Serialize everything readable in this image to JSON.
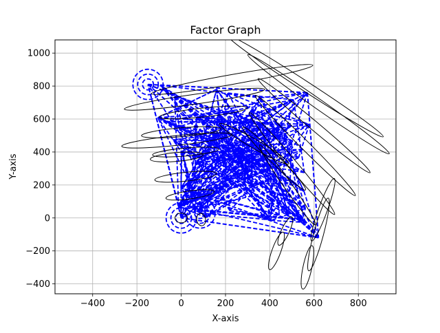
{
  "chart_data": {
    "type": "line",
    "title": "Factor Graph",
    "xlabel": "X-axis",
    "ylabel": "Y-axis",
    "xlim": [
      -570,
      970
    ],
    "ylim": [
      -460,
      1080
    ],
    "xticks": [
      -400,
      -200,
      0,
      200,
      400,
      600,
      800
    ],
    "yticks": [
      -400,
      -200,
      0,
      200,
      400,
      600,
      800,
      1000
    ],
    "xtick_labels": [
      "−400",
      "−200",
      "0",
      "200",
      "400",
      "600",
      "800"
    ],
    "ytick_labels": [
      "−400",
      "−200",
      "0",
      "200",
      "400",
      "600",
      "800",
      "1000"
    ],
    "grid": true,
    "edge_color": "#0000ff",
    "ellipse_color": "#000000",
    "nodes": [
      {
        "x": 0,
        "y": 0
      },
      {
        "x": 85,
        "y": 30
      },
      {
        "x": 160,
        "y": 780
      },
      {
        "x": 570,
        "y": 760
      },
      {
        "x": 620,
        "y": -120
      },
      {
        "x": -150,
        "y": 810
      },
      {
        "x": 390,
        "y": 300
      },
      {
        "x": 200,
        "y": 650
      },
      {
        "x": 500,
        "y": 450
      },
      {
        "x": 120,
        "y": 400
      }
    ],
    "ellipses": [
      {
        "cx": 0,
        "cy": 0,
        "rx": 28,
        "ry": 22,
        "angle": 0
      },
      {
        "cx": 90,
        "cy": -10,
        "rx": 20,
        "ry": 28,
        "angle": 10
      },
      {
        "cx": 430,
        "cy": -200,
        "rx": 90,
        "ry": 20,
        "angle": 70
      },
      {
        "cx": 470,
        "cy": -80,
        "rx": 70,
        "ry": 18,
        "angle": 65
      },
      {
        "cx": 570,
        "cy": -300,
        "rx": 100,
        "ry": 20,
        "angle": 78
      },
      {
        "cx": 620,
        "cy": -100,
        "rx": 170,
        "ry": 22,
        "angle": 75
      },
      {
        "cx": 640,
        "cy": 50,
        "rx": 150,
        "ry": 20,
        "angle": 70
      },
      {
        "cx": 230,
        "cy": 840,
        "rx": 370,
        "ry": 22,
        "angle": 10
      },
      {
        "cx": 60,
        "cy": 720,
        "rx": 320,
        "ry": 22,
        "angle": 8
      },
      {
        "cx": 100,
        "cy": 640,
        "rx": 200,
        "ry": 20,
        "angle": 6
      },
      {
        "cx": 0,
        "cy": 520,
        "rx": 180,
        "ry": 20,
        "angle": 5
      },
      {
        "cx": -20,
        "cy": 470,
        "rx": 250,
        "ry": 22,
        "angle": 6
      },
      {
        "cx": 20,
        "cy": 400,
        "rx": 150,
        "ry": 18,
        "angle": 5
      },
      {
        "cx": -20,
        "cy": 370,
        "rx": 120,
        "ry": 20,
        "angle": 5
      },
      {
        "cx": 20,
        "cy": 250,
        "rx": 140,
        "ry": 20,
        "angle": 6
      },
      {
        "cx": 40,
        "cy": 140,
        "rx": 110,
        "ry": 18,
        "angle": 8
      },
      {
        "cx": 560,
        "cy": 800,
        "rx": 420,
        "ry": 22,
        "angle": -33
      },
      {
        "cx": 620,
        "cy": 690,
        "rx": 390,
        "ry": 22,
        "angle": -35
      },
      {
        "cx": 600,
        "cy": 560,
        "rx": 330,
        "ry": 20,
        "angle": -40
      },
      {
        "cx": 560,
        "cy": 440,
        "rx": 320,
        "ry": 20,
        "angle": -45
      },
      {
        "cx": 500,
        "cy": 330,
        "rx": 300,
        "ry": 20,
        "angle": -50
      },
      {
        "cx": 480,
        "cy": 200,
        "rx": 220,
        "ry": 18,
        "angle": -55
      },
      {
        "cx": 420,
        "cy": 360,
        "rx": 200,
        "ry": 20,
        "angle": -45
      },
      {
        "cx": 330,
        "cy": 450,
        "rx": 180,
        "ry": 20,
        "angle": -30
      }
    ]
  }
}
